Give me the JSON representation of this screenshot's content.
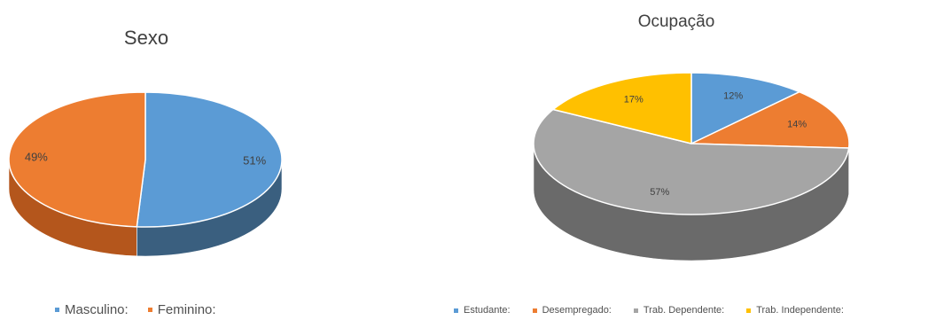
{
  "chart_data": [
    {
      "type": "pie",
      "title": "Sexo",
      "slices": [
        {
          "name": "Masculino:",
          "value": 51,
          "label": "51%",
          "color": "#5b9bd5",
          "side_color": "#3a5f7f"
        },
        {
          "name": "Feminino:",
          "value": 49,
          "label": "49%",
          "color": "#ed7d31",
          "side_color": "#b4561c"
        }
      ],
      "legend": {
        "placement": "bottom"
      }
    },
    {
      "type": "pie",
      "title": "Ocupação",
      "slices": [
        {
          "name": "Estudante:",
          "value": 12,
          "label": "12%",
          "color": "#5b9bd5",
          "side_color": "#3a5f7f"
        },
        {
          "name": "Desempregado:",
          "value": 14,
          "label": "14%",
          "color": "#ed7d31",
          "side_color": "#b4561c"
        },
        {
          "name": "Trab. Dependente:",
          "value": 57,
          "label": "57%",
          "color": "#a5a5a5",
          "side_color": "#6a6a6a"
        },
        {
          "name": "Trab. Independente:",
          "value": 17,
          "label": "17%",
          "color": "#ffc000",
          "side_color": "#b98b00"
        }
      ],
      "legend": {
        "placement": "bottom"
      }
    }
  ]
}
